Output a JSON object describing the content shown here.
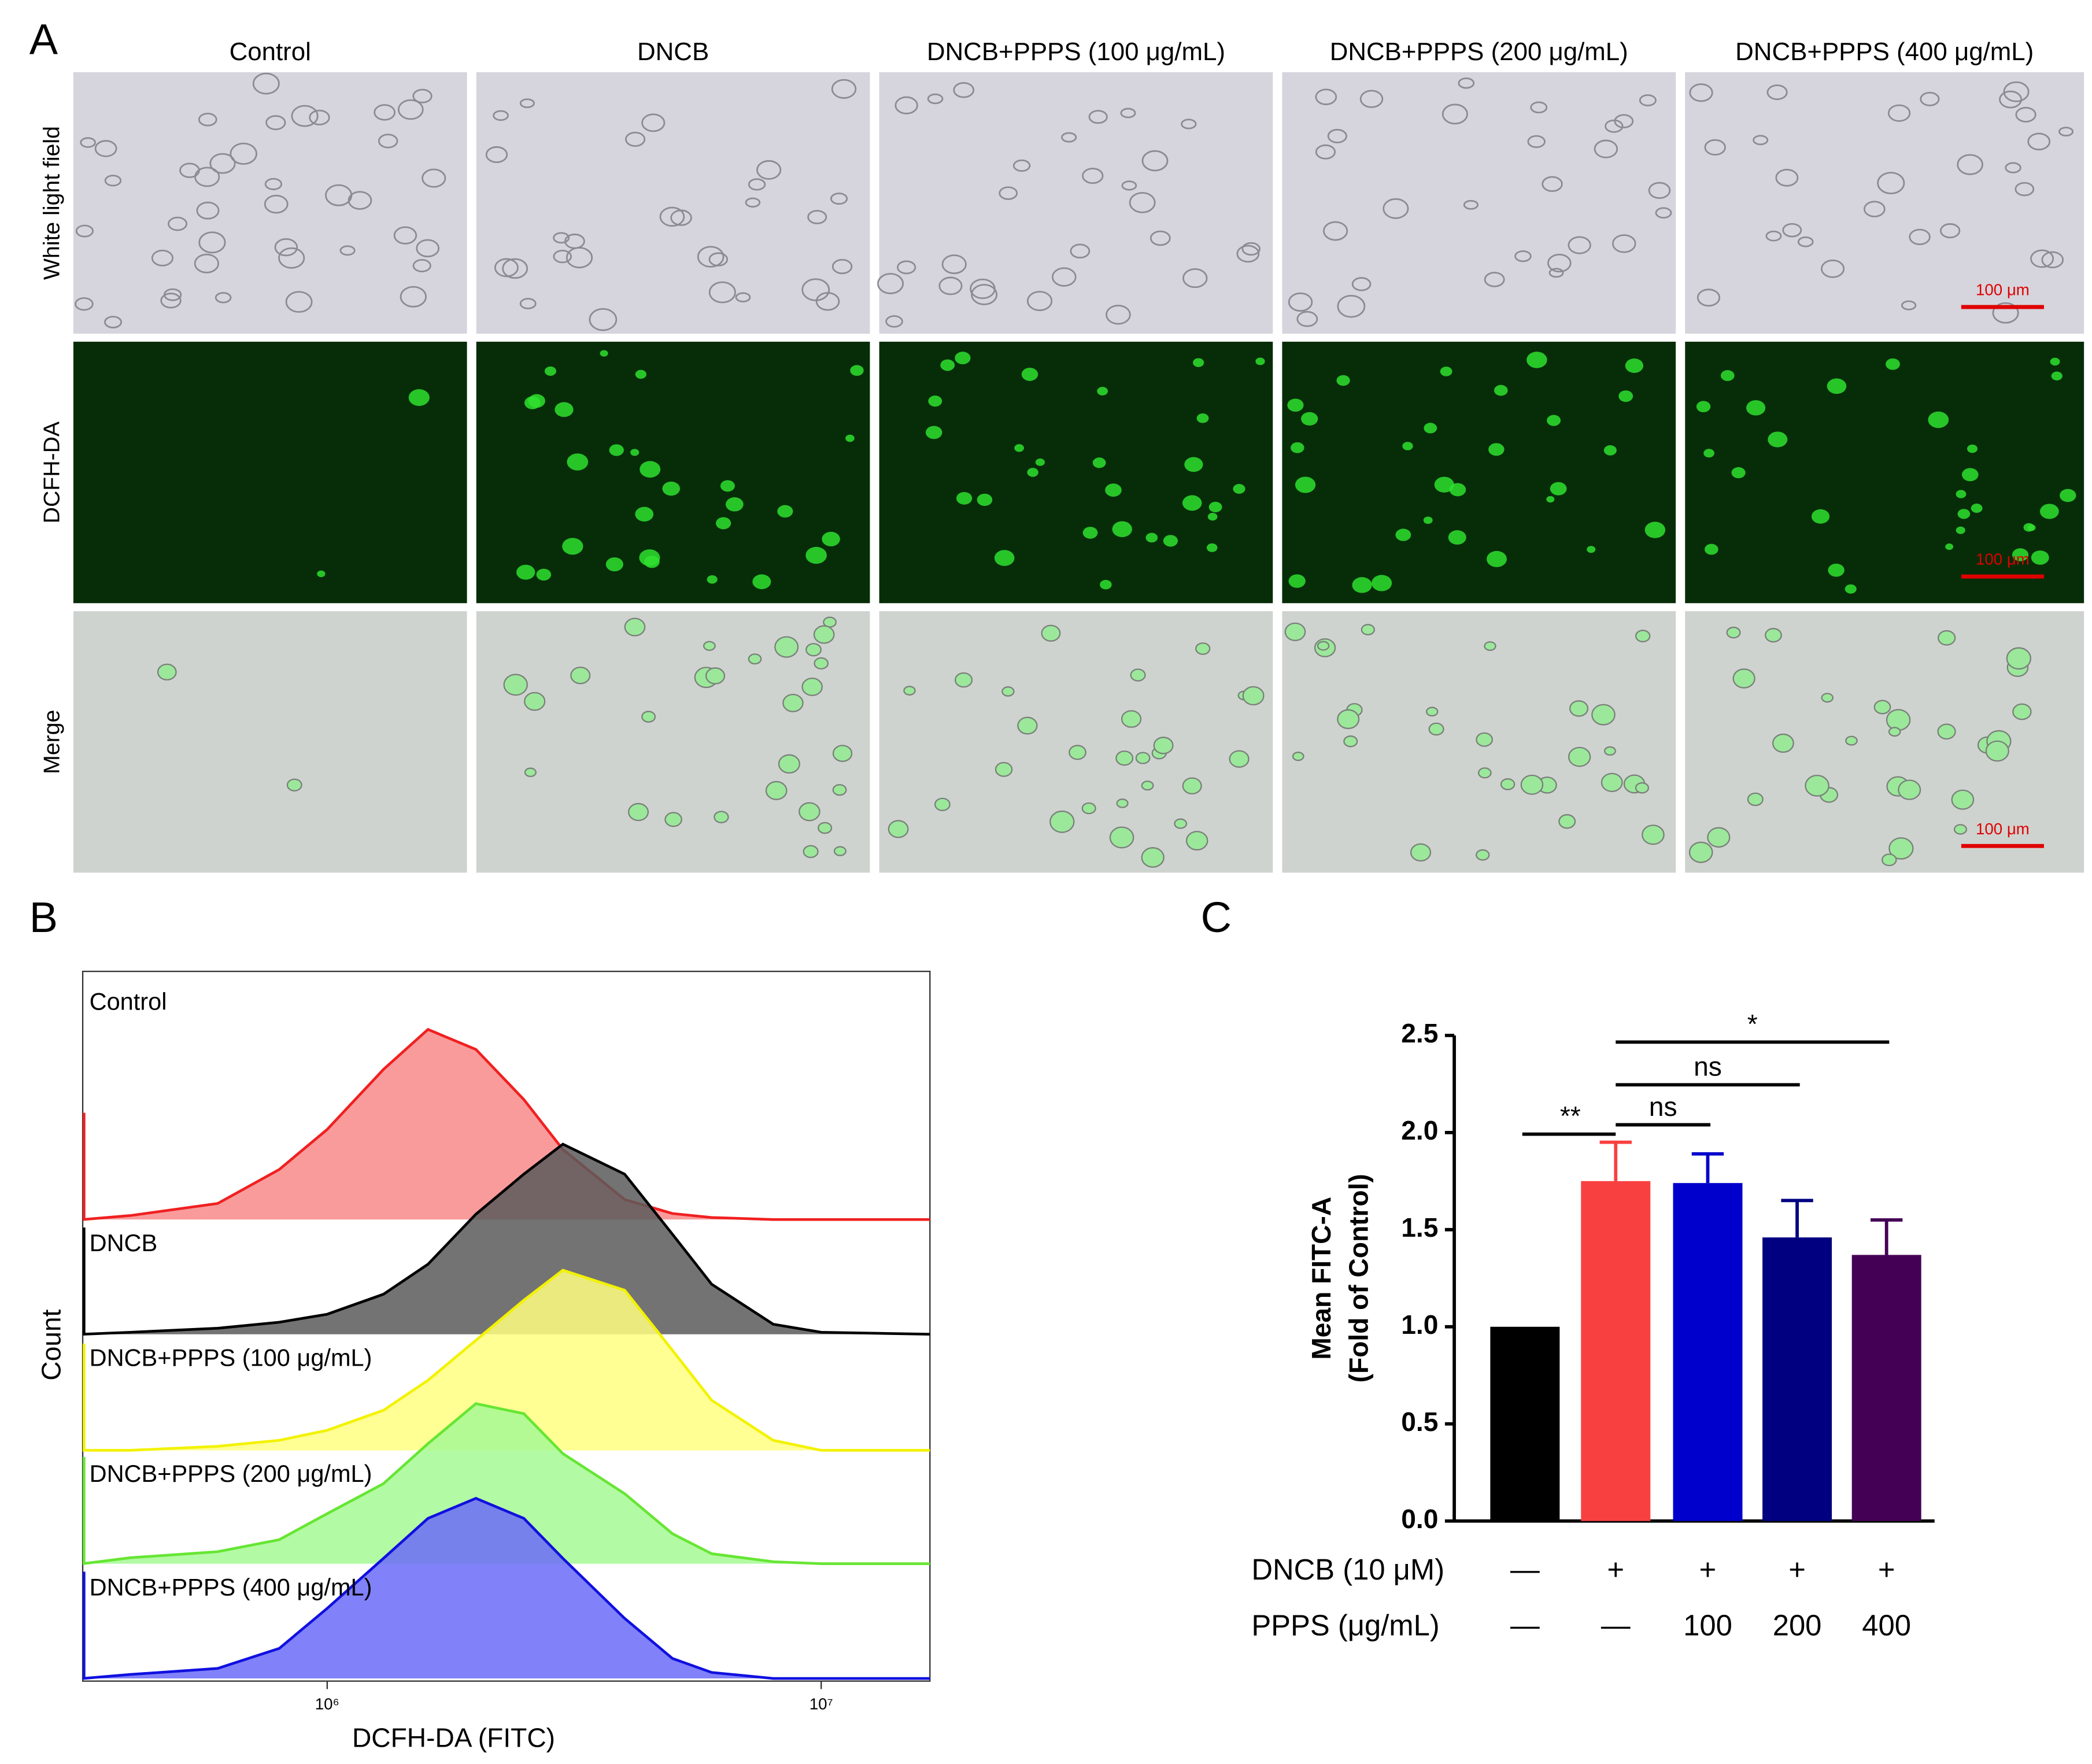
{
  "panel_a": {
    "panel_label": "A",
    "columns": [
      "Control",
      "DNCB",
      "DNCB+PPPS (100 μg/mL)",
      "DNCB+PPPS (200 μg/mL)",
      "DNCB+PPPS (400 μg/mL)"
    ],
    "rows": [
      "White light field",
      "DCFH-DA",
      "Merge"
    ],
    "scale_bar": "100 μm"
  },
  "chart_data": [
    {
      "type": "ridgeline",
      "panel_label": "B",
      "x_label": "DCFH-DA (FITC)",
      "y_label": "Count",
      "log_x": true,
      "xlim": [
        320000,
        16600000
      ],
      "xticks": [
        {
          "value": 1000000,
          "label": "10⁶"
        },
        {
          "value": 10000000,
          "label": "10⁷"
        }
      ],
      "ylim": [
        0,
        100
      ],
      "x": [
        400000,
        600000,
        800000,
        1000000,
        1300000,
        1600000,
        2000000,
        2500000,
        3000000,
        4000000,
        5000000,
        6000000,
        8000000,
        10000000
      ],
      "series": [
        {
          "name": "Control",
          "color": "#f02020",
          "fill": "#f88a8a",
          "values": [
            2,
            8,
            25,
            45,
            75,
            95,
            85,
            60,
            35,
            10,
            3,
            1,
            0,
            0
          ]
        },
        {
          "name": "DNCB",
          "color": "#000000",
          "fill": "#5a5a5a",
          "values": [
            1,
            3,
            6,
            10,
            20,
            35,
            60,
            80,
            95,
            80,
            50,
            25,
            5,
            1
          ]
        },
        {
          "name": "DNCB+PPPS (100 μg/mL)",
          "color": "#f2f200",
          "fill": "#ffff80",
          "values": [
            0,
            2,
            5,
            10,
            20,
            35,
            55,
            75,
            90,
            80,
            50,
            25,
            5,
            0
          ]
        },
        {
          "name": "DNCB+PPPS (200 μg/mL)",
          "color": "#66e633",
          "fill": "#a6f994",
          "values": [
            3,
            6,
            12,
            25,
            40,
            60,
            80,
            75,
            55,
            35,
            15,
            5,
            1,
            0
          ]
        },
        {
          "name": "DNCB+PPPS (400 μg/mL)",
          "color": "#1010e0",
          "fill": "#6b6bf8",
          "values": [
            2,
            5,
            15,
            35,
            60,
            80,
            90,
            80,
            60,
            30,
            10,
            3,
            0,
            0
          ]
        }
      ]
    },
    {
      "type": "bar",
      "panel_label": "C",
      "y_label": [
        "Mean FITC-A",
        "(Fold of Control)"
      ],
      "categories": [
        null,
        null,
        null,
        null,
        null
      ],
      "values": [
        1.0,
        1.75,
        1.74,
        1.46,
        1.37
      ],
      "errors": [
        null,
        0.2,
        0.15,
        0.19,
        0.18
      ],
      "colors": [
        "#000000",
        "#f94040",
        "#0000cc",
        "#000080",
        "#440055"
      ],
      "ylim": [
        0,
        2.5
      ],
      "yticks": [
        {
          "value": 0,
          "label": "0.0"
        },
        0.5,
        {
          "value": 1,
          "label": "1.0"
        },
        1.5,
        {
          "value": 2,
          "label": "2.0"
        },
        2.5
      ],
      "significance": [
        "**",
        "ns",
        "ns",
        "*"
      ],
      "treatment_rows": [
        {
          "label": "DNCB (10 μM)",
          "values": [
            "—",
            "+",
            "+",
            "+",
            "+"
          ]
        },
        {
          "label": "PPPS  (μg/mL)",
          "values": [
            "—",
            "—",
            "100",
            "200",
            "400"
          ]
        }
      ]
    }
  ]
}
